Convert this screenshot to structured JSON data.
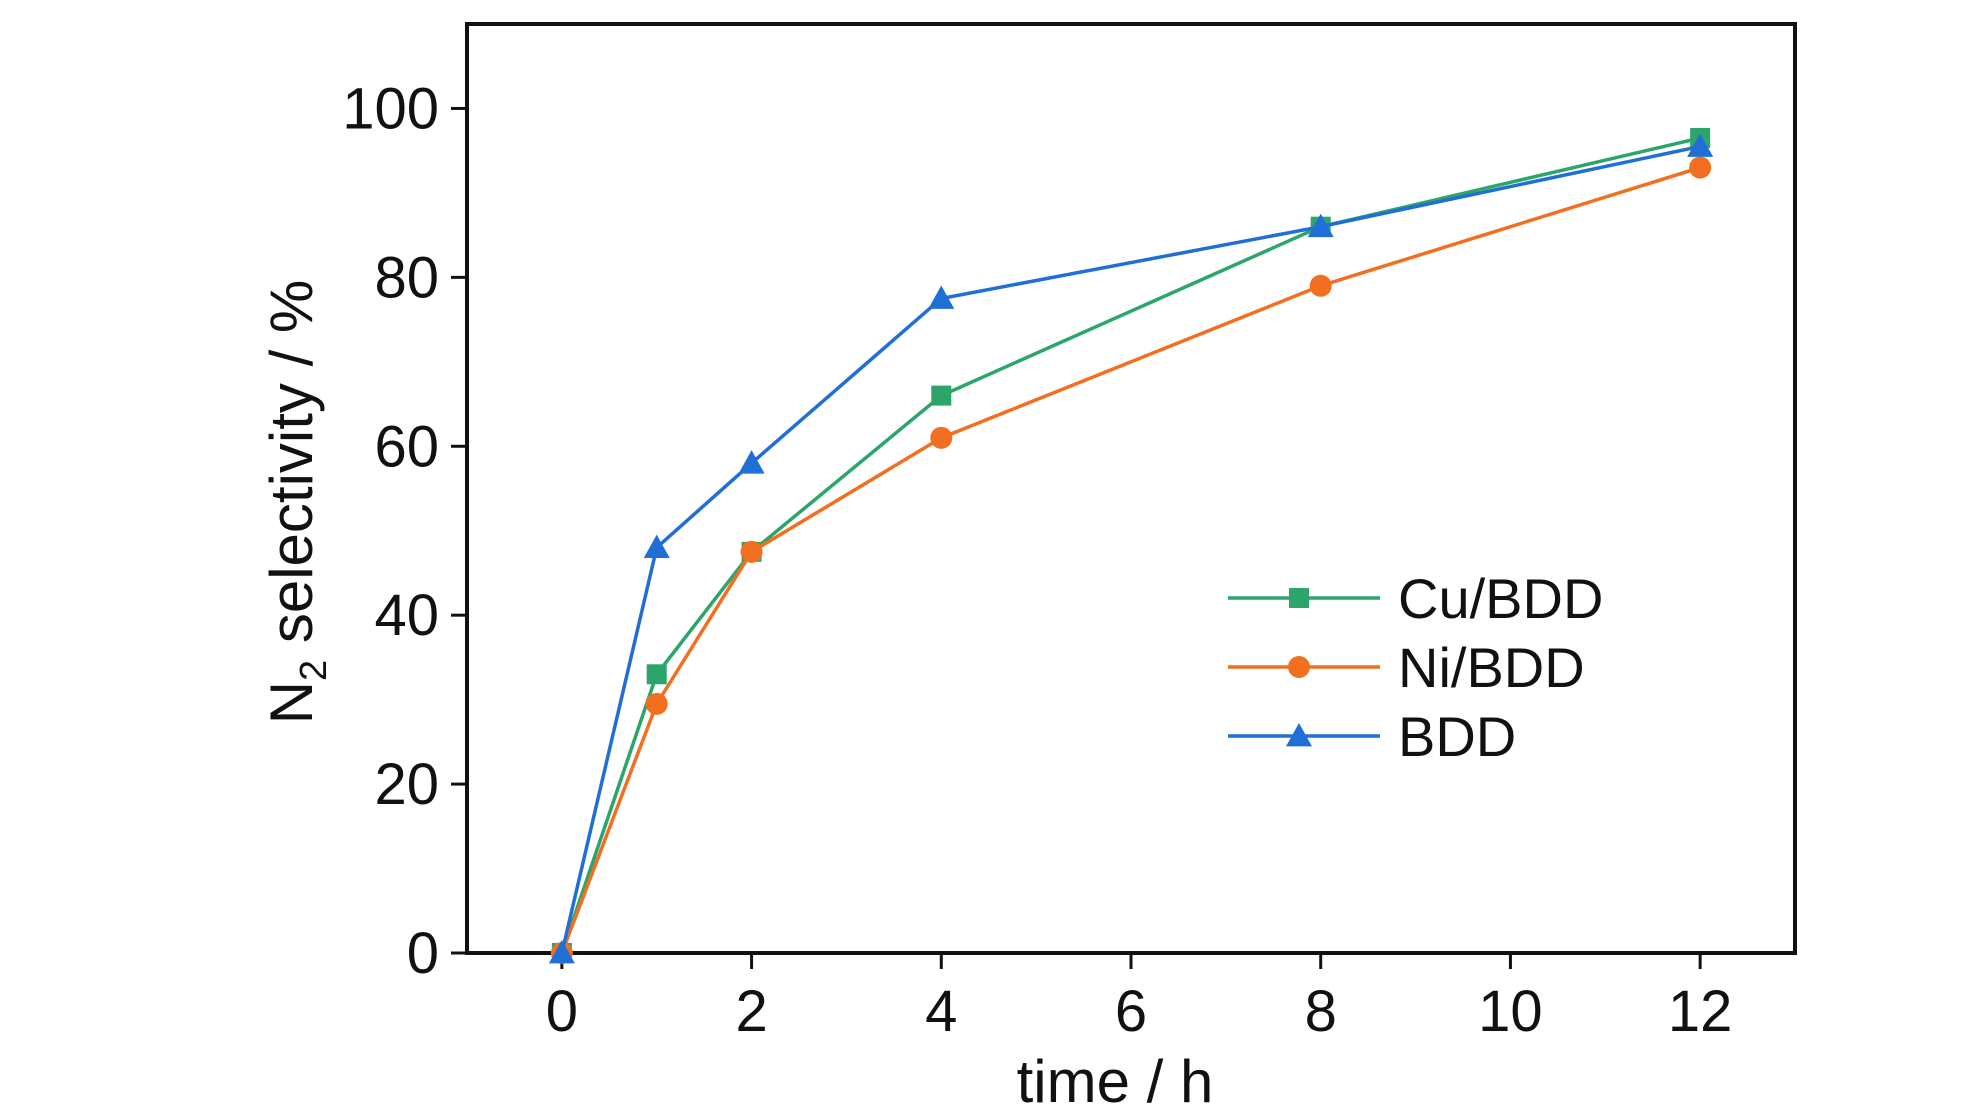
{
  "chart_data": {
    "type": "line",
    "xlabel": "time / h",
    "ylabel_main": "N",
    "ylabel_sub": "2",
    "ylabel_rest": " selectivity / %",
    "xlim": [
      -1,
      13
    ],
    "ylim": [
      0,
      110
    ],
    "xticks": [
      0,
      2,
      4,
      6,
      8,
      10,
      12
    ],
    "yticks": [
      0,
      20,
      40,
      60,
      80,
      100
    ],
    "grid": false,
    "legend_position": "center-right",
    "series": [
      {
        "name": "Cu/BDD",
        "color": "#2ca56a",
        "marker": "square",
        "x": [
          0,
          1,
          2,
          4,
          8,
          12
        ],
        "y": [
          0,
          33,
          47.5,
          66,
          86,
          96.5
        ]
      },
      {
        "name": "Ni/BDD",
        "color": "#f26f1f",
        "marker": "circle",
        "x": [
          0,
          1,
          2,
          4,
          8,
          12
        ],
        "y": [
          0,
          29.5,
          47.5,
          61,
          79,
          93
        ]
      },
      {
        "name": "BDD",
        "color": "#1f6fd6",
        "marker": "triangle",
        "x": [
          0,
          1,
          2,
          4,
          8,
          12
        ],
        "y": [
          0,
          48,
          58,
          77.5,
          86,
          95.5
        ]
      }
    ]
  }
}
